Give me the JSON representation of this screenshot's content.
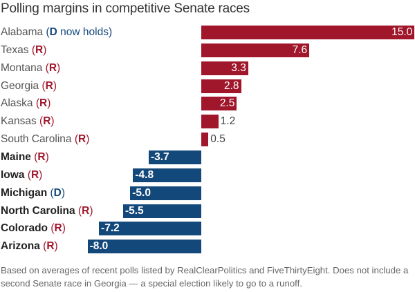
{
  "title": "Polling margins in competitive Senate races",
  "colors": {
    "R": "#a0162b",
    "D": "#13487a"
  },
  "chart_data": {
    "type": "bar",
    "orientation": "horizontal",
    "title": "Polling margins in competitive Senate races",
    "categories": [
      {
        "name": "Alabama",
        "party": "D",
        "note": " now holds",
        "bold": false
      },
      {
        "name": "Texas",
        "party": "R",
        "note": "",
        "bold": false
      },
      {
        "name": "Montana",
        "party": "R",
        "note": "",
        "bold": false
      },
      {
        "name": "Georgia",
        "party": "R",
        "note": "",
        "bold": false
      },
      {
        "name": "Alaska",
        "party": "R",
        "note": "",
        "bold": false
      },
      {
        "name": "Kansas",
        "party": "R",
        "note": "",
        "bold": false
      },
      {
        "name": "South Carolina",
        "party": "R",
        "note": "",
        "bold": false
      },
      {
        "name": "Maine",
        "party": "R",
        "note": "",
        "bold": true
      },
      {
        "name": "Iowa",
        "party": "R",
        "note": "",
        "bold": true
      },
      {
        "name": "Michigan",
        "party": "D",
        "note": "",
        "bold": true
      },
      {
        "name": "North Carolina",
        "party": "R",
        "note": "",
        "bold": true
      },
      {
        "name": "Colorado",
        "party": "R",
        "note": "",
        "bold": true
      },
      {
        "name": "Arizona",
        "party": "R",
        "note": "",
        "bold": true
      }
    ],
    "values": [
      15.0,
      7.6,
      3.3,
      2.8,
      2.5,
      1.2,
      0.5,
      -3.7,
      -4.8,
      -5.0,
      -5.5,
      -7.2,
      -8.0
    ],
    "value_labels": [
      "15.0",
      "7.6",
      "3.3",
      "2.8",
      "2.5",
      "1.2",
      "0.5",
      "-3.7",
      "-4.8",
      "-5.0",
      "-5.5",
      "-7.2",
      "-8.0"
    ],
    "xlabel": "",
    "ylabel": "",
    "xlim": [
      -8.0,
      15.0
    ]
  },
  "footnote": "Based on averages of recent polls listed by RealClearPolitics and FiveThirtyEight. Does not include a second Senate race in Georgia — a special election likely to go to a runoff."
}
